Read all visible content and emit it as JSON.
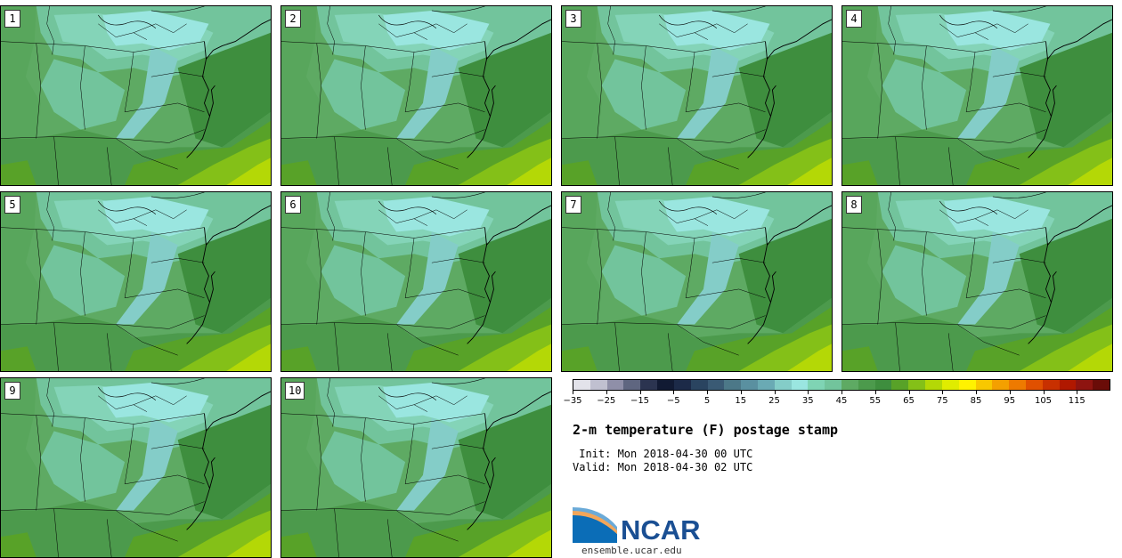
{
  "panels": [
    {
      "label": "1"
    },
    {
      "label": "2"
    },
    {
      "label": "3"
    },
    {
      "label": "4"
    },
    {
      "label": "5"
    },
    {
      "label": "6"
    },
    {
      "label": "7"
    },
    {
      "label": "8"
    },
    {
      "label": "9"
    },
    {
      "label": "10"
    }
  ],
  "colorbar": {
    "colors": [
      "#e3e3ea",
      "#c0c0d0",
      "#8f8fa8",
      "#5f6680",
      "#2b3450",
      "#111a33",
      "#1c2a48",
      "#2a4460",
      "#3a5a74",
      "#4c7888",
      "#5a90a0",
      "#6aaab4",
      "#84cdc8",
      "#9ae6e0",
      "#7fd4b4",
      "#72c49c",
      "#5eaa63",
      "#4c9a4c",
      "#3e8e3e",
      "#58a228",
      "#84c018",
      "#b4d806",
      "#e0ec00",
      "#fff200",
      "#f8c800",
      "#f4a000",
      "#ee7a00",
      "#e05000",
      "#c83000",
      "#b01800",
      "#8e1410",
      "#6a0c08"
    ],
    "tick_labels": [
      "−35",
      "−25",
      "−15",
      "−5",
      "5",
      "15",
      "25",
      "35",
      "45",
      "55",
      "65",
      "75",
      "85",
      "95",
      "105",
      "115"
    ]
  },
  "title": "2-m temperature (F) postage stamp",
  "init": " Init: Mon 2018-04-30 00 UTC",
  "valid": "Valid: Mon 2018-04-30 02 UTC",
  "logo": {
    "text": "NCAR",
    "url_text": "ensemble.ucar.edu"
  }
}
